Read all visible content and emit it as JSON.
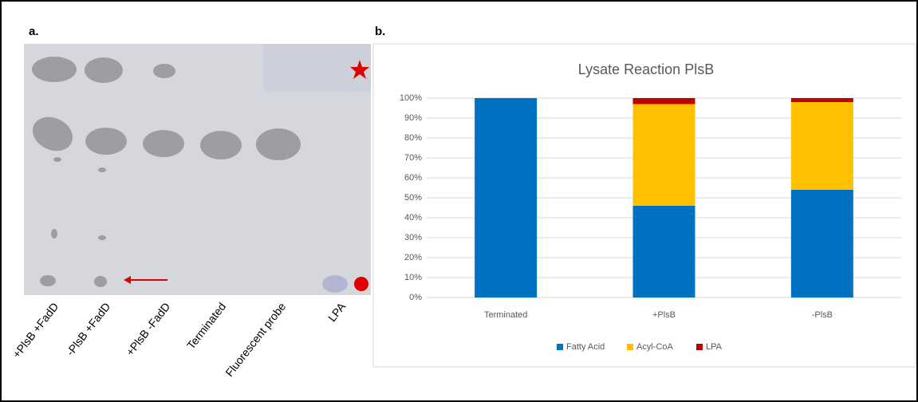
{
  "panel_a": {
    "label": "a.",
    "lanes": [
      "+PlsB +FadD",
      "-PlsB +FadD",
      "+PlsB -FadD",
      "Terminated",
      "Fluorescent probe",
      "LPA"
    ]
  },
  "panel_b_label": "b.",
  "chart_data": {
    "type": "stacked-bar",
    "title": "Lysate Reaction PlsB",
    "categories": [
      "Terminated",
      "+PlsB",
      "-PlsB"
    ],
    "series": [
      {
        "name": "Fatty Acid",
        "color": "#0070c0",
        "values": [
          100,
          46,
          54
        ]
      },
      {
        "name": "Acyl-CoA",
        "color": "#ffc000",
        "values": [
          0,
          51,
          44
        ]
      },
      {
        "name": "LPA",
        "color": "#c00000",
        "values": [
          0,
          3,
          2
        ]
      }
    ],
    "ylim": [
      0,
      100
    ],
    "yticks": [
      {
        "value": 0,
        "label": "0%"
      },
      {
        "value": 10,
        "label": "10%"
      },
      {
        "value": 20,
        "label": "20%"
      },
      {
        "value": 30,
        "label": "30%"
      },
      {
        "value": 40,
        "label": "40%"
      },
      {
        "value": 50,
        "label": "50%"
      },
      {
        "value": 60,
        "label": "60%"
      },
      {
        "value": 70,
        "label": "70%"
      },
      {
        "value": 80,
        "label": "80%"
      },
      {
        "value": 90,
        "label": "90%"
      },
      {
        "value": 100,
        "label": "100%"
      }
    ],
    "grid": true,
    "legend": "bottom"
  }
}
